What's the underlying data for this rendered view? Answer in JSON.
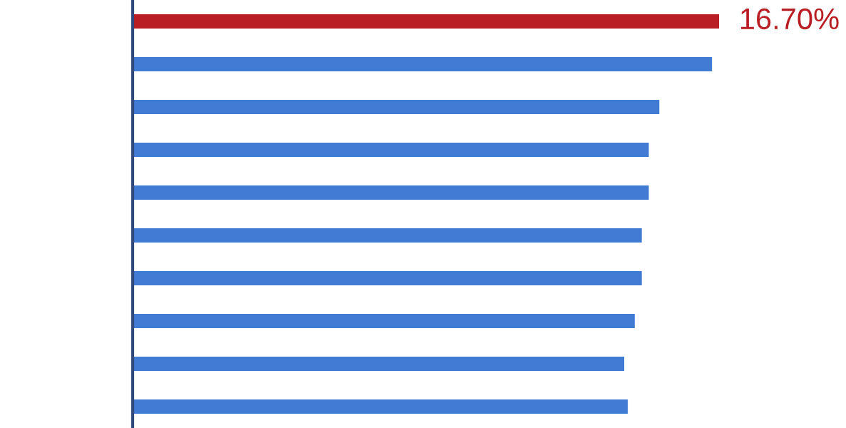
{
  "chart_data": {
    "type": "bar",
    "orientation": "horizontal",
    "categories": [
      null,
      null,
      null,
      null,
      null,
      null,
      null,
      null,
      null,
      null
    ],
    "values": [
      16.7,
      16.5,
      15.0,
      14.7,
      14.7,
      14.5,
      14.5,
      14.3,
      14.0,
      14.1
    ],
    "colors": [
      "#b81e23",
      "#417bd3",
      "#417bd3",
      "#417bd3",
      "#417bd3",
      "#417bd3",
      "#417bd3",
      "#417bd3",
      "#417bd3",
      "#417bd3"
    ],
    "value_labels": [
      "16.70%",
      null,
      null,
      null,
      null,
      null,
      null,
      null,
      null,
      null
    ],
    "grid": false,
    "legend": false
  }
}
